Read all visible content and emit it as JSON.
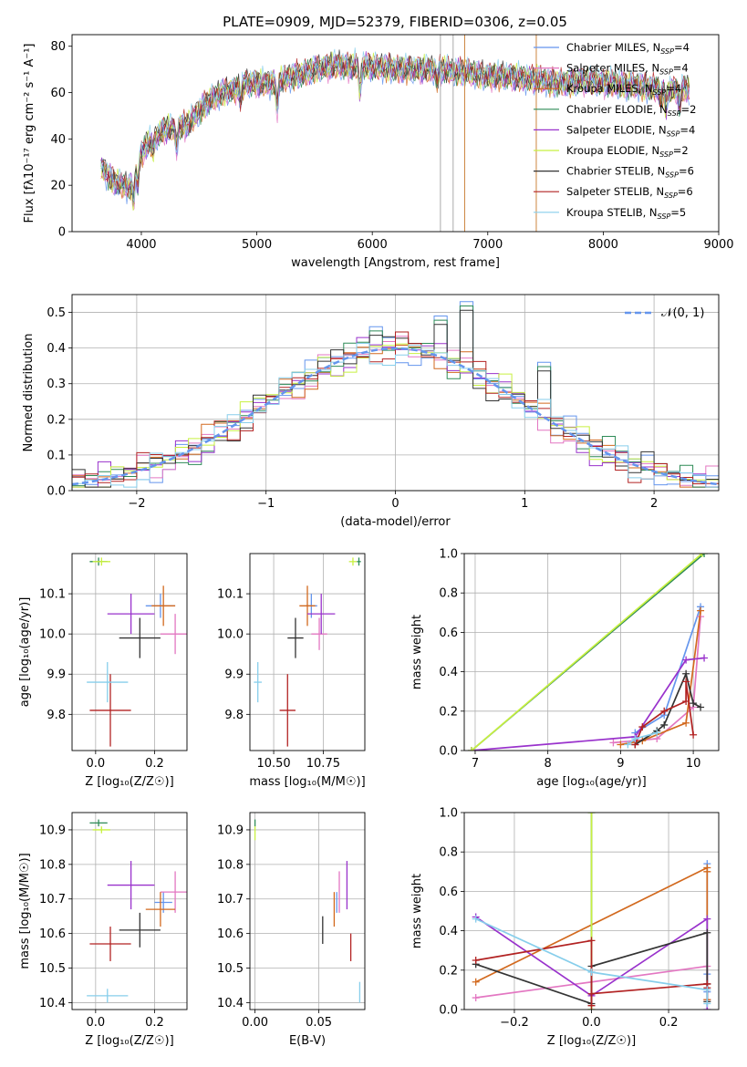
{
  "figure": {
    "title": "PLATE=0909, MJD=52379, FIBERID=0306, z=0.05"
  },
  "chart_data": [
    {
      "id": "spectrum",
      "type": "line",
      "xlabel": "wavelength [Angstrom, rest frame]",
      "ylabel": "Flux [fλ10⁻¹⁷ erg cm⁻² s⁻¹ A⁻¹]",
      "xlim": [
        3400,
        9000
      ],
      "ylim": [
        0,
        85
      ],
      "xticks": [
        4000,
        5000,
        6000,
        7000,
        8000,
        9000
      ],
      "yticks": [
        0,
        20,
        40,
        60,
        80
      ],
      "legend_position": "upper-right",
      "series": [
        {
          "name": "Chabrier MILES, N_SSP=4",
          "label_main": "Chabrier MILES, N",
          "label_sub": "SSP",
          "label_tail": "=4",
          "color": "#6495ed"
        },
        {
          "name": "Salpeter MILES, N_SSP=4",
          "label_main": "Salpeter MILES, N",
          "label_sub": "SSP",
          "label_tail": "=4",
          "color": "#e377c2"
        },
        {
          "name": "Kroupa MILES, N_SSP=4",
          "label_main": "Kroupa MILES, N",
          "label_sub": "SSP",
          "label_tail": "=4",
          "color": "#d2691e"
        },
        {
          "name": "Chabrier ELODIE, N_SSP=2",
          "label_main": "Chabrier ELODIE, N",
          "label_sub": "SSP",
          "label_tail": "=2",
          "color": "#2e8b57"
        },
        {
          "name": "Salpeter ELODIE, N_SSP=4",
          "label_main": "Salpeter ELODIE, N",
          "label_sub": "SSP",
          "label_tail": "=4",
          "color": "#9932cc"
        },
        {
          "name": "Kroupa ELODIE, N_SSP=2",
          "label_main": "Kroupa ELODIE, N",
          "label_sub": "SSP",
          "label_tail": "=2",
          "color": "#c8f040"
        },
        {
          "name": "Chabrier STELIB, N_SSP=6",
          "label_main": "Chabrier STELIB, N",
          "label_sub": "SSP",
          "label_tail": "=6",
          "color": "#333333"
        },
        {
          "name": "Salpeter STELIB, N_SSP=6",
          "label_main": "Salpeter STELIB, N",
          "label_sub": "SSP",
          "label_tail": "=6",
          "color": "#b22222"
        },
        {
          "name": "Kroupa STELIB, N_SSP=5",
          "label_main": "Kroupa STELIB, N",
          "label_sub": "SSP",
          "label_tail": "=5",
          "color": "#87ceeb"
        }
      ],
      "continuum": {
        "x": [
          3650,
          3700,
          3750,
          3850,
          3900,
          3950,
          4000,
          4050,
          4100,
          4200,
          4300,
          4400,
          4500,
          4600,
          4700,
          4800,
          4900,
          5000,
          5100,
          5200,
          5300,
          5400,
          5500,
          5600,
          5700,
          5800,
          5900,
          6000,
          6100,
          6200,
          6300,
          6400,
          6500,
          6600,
          6700,
          6800,
          6900,
          7000,
          7100,
          7200,
          7300,
          7400,
          7500,
          7600,
          7700,
          7800,
          7900,
          8000,
          8100,
          8200,
          8300,
          8400,
          8500,
          8600,
          8700,
          8750
        ],
        "y": [
          28,
          25,
          22,
          20,
          19,
          28,
          33,
          38,
          40,
          44,
          45,
          46,
          52,
          57,
          60,
          61,
          64,
          64,
          64,
          65,
          67,
          68,
          70,
          71,
          72,
          71,
          72,
          71,
          71,
          70,
          70,
          70,
          70,
          70,
          69,
          69,
          68,
          67,
          67,
          67,
          66,
          66,
          65,
          64,
          64,
          65,
          65,
          64,
          64,
          63,
          63,
          62,
          62,
          61,
          62,
          61
        ]
      },
      "absorption_lines": [
        {
          "x": 3933,
          "depth": 13
        },
        {
          "x": 3968,
          "depth": 10
        },
        {
          "x": 4102,
          "depth": 6
        },
        {
          "x": 4304,
          "depth": 9
        },
        {
          "x": 4861,
          "depth": 6
        },
        {
          "x": 5175,
          "depth": 12
        },
        {
          "x": 5893,
          "depth": 12
        },
        {
          "x": 6563,
          "depth": 5
        },
        {
          "x": 8498,
          "depth": 6
        },
        {
          "x": 8542,
          "depth": 9
        },
        {
          "x": 8662,
          "depth": 8
        }
      ],
      "spikes": [
        {
          "x": 6590,
          "color": "#aaaaaa"
        },
        {
          "x": 6700,
          "color": "#aaaaaa"
        },
        {
          "x": 6800,
          "color": "#cd853f"
        },
        {
          "x": 7420,
          "color": "#cd853f"
        }
      ]
    },
    {
      "id": "residuals",
      "type": "histogram",
      "xlabel": "(data-model)/error",
      "ylabel": "Normed distribution",
      "xlim": [
        -2.5,
        2.5
      ],
      "ylim": [
        0,
        0.55
      ],
      "xticks": [
        -2,
        -1,
        0,
        1,
        2
      ],
      "yticks": [
        0.0,
        0.1,
        0.2,
        0.3,
        0.4,
        0.5
      ],
      "grid": true,
      "bin_width": 0.1,
      "bin_start": -2.5,
      "legend": {
        "label": "𝒩(0, 1)",
        "position": "upper-right"
      },
      "normal_curve": {
        "mean": 0,
        "sigma": 1,
        "color": "#6495ed",
        "style": "dashed"
      },
      "jitter": [
        0.02,
        -0.03,
        0.04,
        -0.01,
        0.05,
        -0.04,
        0.0,
        0.03,
        -0.05,
        0.02
      ],
      "spikes": [
        {
          "x": 0.55,
          "y": 0.53
        },
        {
          "x": 0.35,
          "y": 0.49
        },
        {
          "x": -0.15,
          "y": 0.46
        },
        {
          "x": 1.15,
          "y": 0.36
        }
      ]
    },
    {
      "id": "age-vs-Z",
      "type": "scatter",
      "xlabel": "Z [log₁₀(Z/Z☉)]",
      "ylabel": "age  [log₁₀(age/yr)]",
      "xlim": [
        -0.08,
        0.31
      ],
      "ylim": [
        9.71,
        10.2
      ],
      "xticks": [
        0.0,
        0.2
      ],
      "yticks": [
        9.8,
        9.9,
        10.0,
        10.1
      ],
      "grid": true,
      "points": [
        {
          "x": 0.22,
          "y": 10.07,
          "xerr": 0.05,
          "yerr": 0.03,
          "series": 0
        },
        {
          "x": 0.27,
          "y": 10.0,
          "xerr": 0.05,
          "yerr": 0.05,
          "series": 1
        },
        {
          "x": 0.23,
          "y": 10.07,
          "xerr": 0.04,
          "yerr": 0.05,
          "series": 2
        },
        {
          "x": 0.01,
          "y": 10.18,
          "xerr": 0.03,
          "yerr": 0.01,
          "series": 3
        },
        {
          "x": 0.12,
          "y": 10.05,
          "xerr": 0.08,
          "yerr": 0.05,
          "series": 4
        },
        {
          "x": 0.02,
          "y": 10.18,
          "xerr": 0.03,
          "yerr": 0.01,
          "series": 5
        },
        {
          "x": 0.15,
          "y": 9.99,
          "xerr": 0.07,
          "yerr": 0.05,
          "series": 6
        },
        {
          "x": 0.05,
          "y": 9.81,
          "xerr": 0.07,
          "yerr": 0.09,
          "series": 7
        },
        {
          "x": 0.04,
          "y": 9.88,
          "xerr": 0.07,
          "yerr": 0.05,
          "series": 8
        }
      ]
    },
    {
      "id": "age-vs-mass",
      "type": "scatter",
      "xlabel": "mass [log₁₀(M/M☉)]",
      "ylabel": "",
      "xlim": [
        10.38,
        10.96
      ],
      "ylim": [
        9.71,
        10.2
      ],
      "xticks": [
        10.5,
        10.75
      ],
      "yticks": [
        9.8,
        9.9,
        10.0,
        10.1
      ],
      "grid": true,
      "points": [
        {
          "x": 10.69,
          "y": 10.07,
          "xerr": 0.03,
          "yerr": 0.03,
          "series": 0
        },
        {
          "x": 10.73,
          "y": 10.0,
          "xerr": 0.04,
          "yerr": 0.04,
          "series": 1
        },
        {
          "x": 10.67,
          "y": 10.07,
          "xerr": 0.04,
          "yerr": 0.05,
          "series": 2
        },
        {
          "x": 10.93,
          "y": 10.18,
          "xerr": 0.01,
          "yerr": 0.01,
          "series": 3
        },
        {
          "x": 10.74,
          "y": 10.05,
          "xerr": 0.07,
          "yerr": 0.05,
          "series": 4
        },
        {
          "x": 10.9,
          "y": 10.18,
          "xerr": 0.02,
          "yerr": 0.01,
          "series": 5
        },
        {
          "x": 10.61,
          "y": 9.99,
          "xerr": 0.04,
          "yerr": 0.05,
          "series": 6
        },
        {
          "x": 10.57,
          "y": 9.81,
          "xerr": 0.04,
          "yerr": 0.09,
          "series": 7
        },
        {
          "x": 10.42,
          "y": 9.88,
          "xerr": 0.02,
          "yerr": 0.05,
          "series": 8
        }
      ]
    },
    {
      "id": "massweight-vs-age",
      "type": "line",
      "xlabel": "age  [log₁₀(age/yr)]",
      "ylabel": "mass weight",
      "xlim": [
        6.85,
        10.35
      ],
      "ylim": [
        0,
        1.0
      ],
      "xticks": [
        7,
        8,
        9,
        10
      ],
      "yticks": [
        0.0,
        0.2,
        0.4,
        0.6,
        0.8,
        1.0
      ],
      "grid": true,
      "series": [
        {
          "series": 0,
          "x": [
            9.2,
            9.6,
            10.1
          ],
          "y": [
            0.09,
            0.18,
            0.73
          ]
        },
        {
          "series": 1,
          "x": [
            8.9,
            9.5,
            10.0,
            10.1
          ],
          "y": [
            0.04,
            0.06,
            0.22,
            0.68
          ]
        },
        {
          "series": 2,
          "x": [
            9.0,
            9.3,
            9.9,
            10.1
          ],
          "y": [
            0.03,
            0.05,
            0.14,
            0.71
          ]
        },
        {
          "series": 3,
          "x": [
            6.95,
            10.15
          ],
          "y": [
            0.0,
            1.0
          ]
        },
        {
          "series": 4,
          "x": [
            6.95,
            9.2,
            9.9,
            10.15
          ],
          "y": [
            0.0,
            0.07,
            0.46,
            0.47
          ]
        },
        {
          "series": 5,
          "x": [
            6.95,
            10.12
          ],
          "y": [
            0.0,
            1.0
          ]
        },
        {
          "series": 6,
          "x": [
            9.2,
            9.5,
            9.6,
            9.9,
            10.0,
            10.1
          ],
          "y": [
            0.03,
            0.1,
            0.13,
            0.39,
            0.24,
            0.22
          ]
        },
        {
          "series": 7,
          "x": [
            9.2,
            9.3,
            9.6,
            9.9,
            9.9,
            10.0
          ],
          "y": [
            0.03,
            0.12,
            0.2,
            0.25,
            0.35,
            0.08
          ]
        },
        {
          "series": 8,
          "x": [
            9.1,
            9.2,
            9.5
          ],
          "y": [
            0.03,
            0.06,
            0.09
          ]
        }
      ]
    },
    {
      "id": "mass-vs-Z",
      "type": "scatter",
      "xlabel": "Z [log₁₀(Z/Z☉)]",
      "ylabel": "mass [log₁₀(M/M☉)]",
      "xlim": [
        -0.08,
        0.31
      ],
      "ylim": [
        10.38,
        10.95
      ],
      "xticks": [
        0.0,
        0.2
      ],
      "yticks": [
        10.4,
        10.5,
        10.6,
        10.7,
        10.8,
        10.9
      ],
      "grid": true,
      "points": [
        {
          "x": 0.23,
          "y": 10.69,
          "xerr": 0.03,
          "yerr": 0.03,
          "series": 0
        },
        {
          "x": 0.27,
          "y": 10.72,
          "xerr": 0.05,
          "yerr": 0.06,
          "series": 1
        },
        {
          "x": 0.22,
          "y": 10.67,
          "xerr": 0.05,
          "yerr": 0.05,
          "series": 2
        },
        {
          "x": 0.01,
          "y": 10.92,
          "xerr": 0.03,
          "yerr": 0.01,
          "series": 3
        },
        {
          "x": 0.12,
          "y": 10.74,
          "xerr": 0.08,
          "yerr": 0.07,
          "series": 4
        },
        {
          "x": 0.02,
          "y": 10.9,
          "xerr": 0.03,
          "yerr": 0.01,
          "series": 5
        },
        {
          "x": 0.15,
          "y": 10.61,
          "xerr": 0.07,
          "yerr": 0.05,
          "series": 6
        },
        {
          "x": 0.05,
          "y": 10.57,
          "xerr": 0.07,
          "yerr": 0.05,
          "series": 7
        },
        {
          "x": 0.04,
          "y": 10.42,
          "xerr": 0.07,
          "yerr": 0.02,
          "series": 8
        }
      ]
    },
    {
      "id": "mass-vs-ebv",
      "type": "scatter",
      "xlabel": "E(B-V)",
      "ylabel": "",
      "xlim": [
        -0.004,
        0.086
      ],
      "ylim": [
        10.38,
        10.95
      ],
      "xticks": [
        0.0,
        0.05
      ],
      "yticks": [
        10.4,
        10.5,
        10.6,
        10.7,
        10.8,
        10.9
      ],
      "grid": true,
      "points": [
        {
          "x": 0.064,
          "y": 10.69,
          "xerr": 0.0,
          "yerr": 0.03,
          "series": 0
        },
        {
          "x": 0.066,
          "y": 10.72,
          "xerr": 0.0,
          "yerr": 0.06,
          "series": 1
        },
        {
          "x": 0.062,
          "y": 10.67,
          "xerr": 0.0,
          "yerr": 0.05,
          "series": 2
        },
        {
          "x": 0.0,
          "y": 10.92,
          "xerr": 0.0,
          "yerr": 0.01,
          "series": 3
        },
        {
          "x": 0.072,
          "y": 10.74,
          "xerr": 0.0,
          "yerr": 0.07,
          "series": 4
        },
        {
          "x": 0.0,
          "y": 10.89,
          "xerr": 0.0,
          "yerr": 0.02,
          "series": 5
        },
        {
          "x": 0.053,
          "y": 10.61,
          "xerr": 0.0,
          "yerr": 0.04,
          "series": 6
        },
        {
          "x": 0.075,
          "y": 10.56,
          "xerr": 0.0,
          "yerr": 0.04,
          "series": 7
        },
        {
          "x": 0.082,
          "y": 10.43,
          "xerr": 0.0,
          "yerr": 0.03,
          "series": 8
        }
      ]
    },
    {
      "id": "massweight-vs-Z",
      "type": "line",
      "xlabel": "Z [log₁₀(Z/Z☉)]",
      "ylabel": "mass weight",
      "xlim": [
        -0.33,
        0.33
      ],
      "ylim": [
        0,
        1.0
      ],
      "xticks": [
        -0.2,
        0.0,
        0.2
      ],
      "yticks": [
        0.0,
        0.2,
        0.4,
        0.6,
        0.8,
        1.0
      ],
      "grid": true,
      "series": [
        {
          "series": 0,
          "x": [
            0.3,
            0.3,
            0.3
          ],
          "y": [
            0.74,
            0.18,
            0.09
          ]
        },
        {
          "series": 1,
          "x": [
            -0.3,
            0.3,
            0.3
          ],
          "y": [
            0.06,
            0.22,
            0.05
          ]
        },
        {
          "series": 2,
          "x": [
            -0.3,
            0.3,
            0.3,
            0.3
          ],
          "y": [
            0.14,
            0.72,
            0.7,
            0.05
          ]
        },
        {
          "series": 3,
          "x": [
            0.0,
            0.0
          ],
          "y": [
            0.0,
            1.0
          ]
        },
        {
          "series": 4,
          "x": [
            -0.3,
            0.0,
            0.3,
            0.3
          ],
          "y": [
            0.47,
            0.07,
            0.46,
            0.0
          ]
        },
        {
          "series": 5,
          "x": [
            0.0,
            0.0
          ],
          "y": [
            0.0,
            1.0
          ]
        },
        {
          "series": 6,
          "x": [
            -0.3,
            0.0,
            0.0,
            0.3,
            0.3,
            0.3
          ],
          "y": [
            0.23,
            0.03,
            0.22,
            0.39,
            0.13,
            0.04
          ]
        },
        {
          "series": 7,
          "x": [
            -0.3,
            0.0,
            0.0,
            0.0,
            0.3,
            0.3
          ],
          "y": [
            0.25,
            0.35,
            0.02,
            0.08,
            0.13,
            0.11
          ]
        },
        {
          "series": 8,
          "x": [
            -0.3,
            0.0,
            0.3,
            0.3
          ],
          "y": [
            0.46,
            0.19,
            0.1,
            0.03
          ]
        }
      ]
    }
  ]
}
